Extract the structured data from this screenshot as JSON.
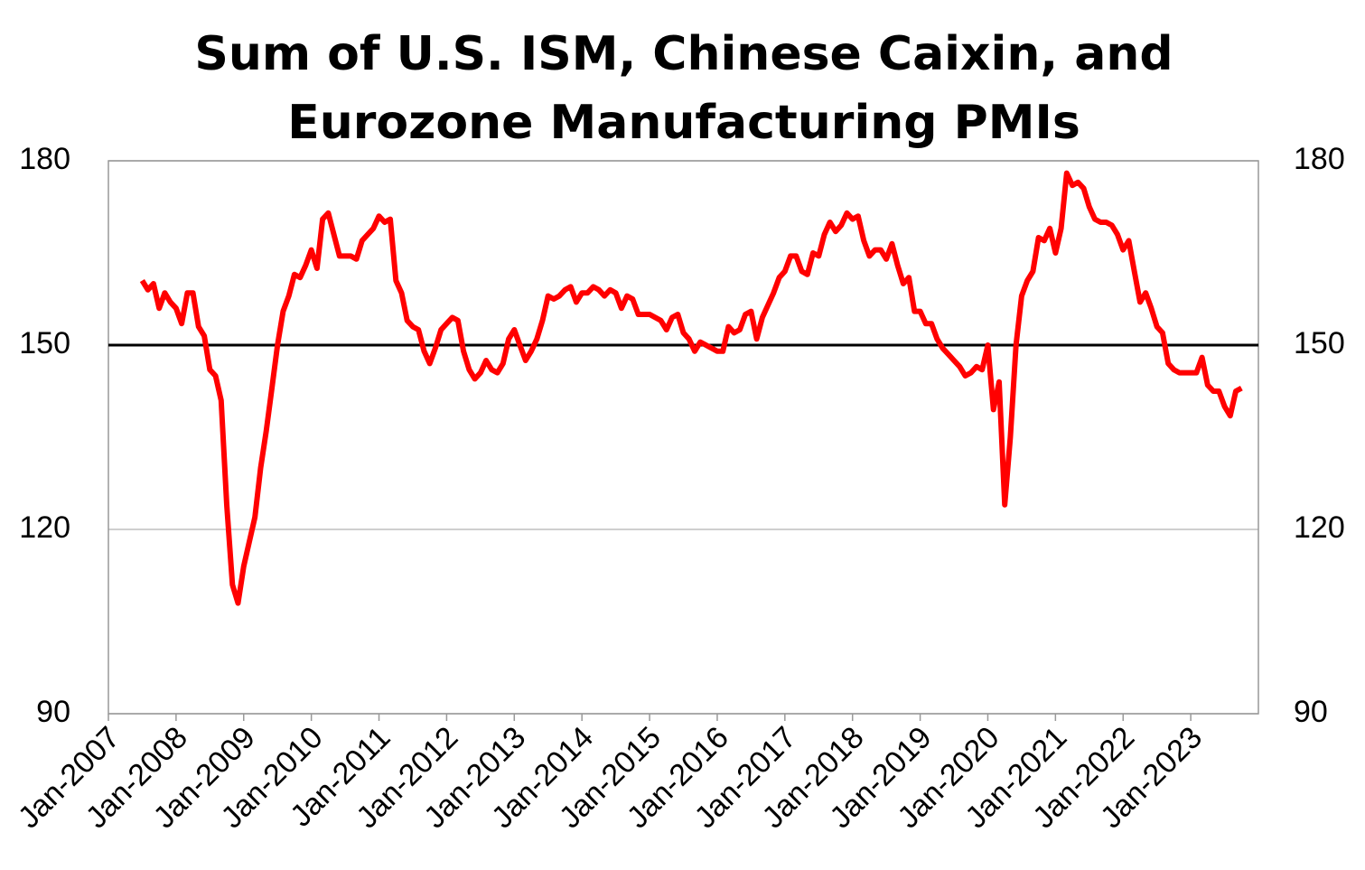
{
  "chart_data": {
    "type": "line",
    "title": "Sum of U.S. ISM, Chinese Caixin, and Eurozone Manufacturing PMIs",
    "x": [
      "2007-07",
      "2007-08",
      "2007-09",
      "2007-10",
      "2007-11",
      "2007-12",
      "2008-01",
      "2008-02",
      "2008-03",
      "2008-04",
      "2008-05",
      "2008-06",
      "2008-07",
      "2008-08",
      "2008-09",
      "2008-10",
      "2008-11",
      "2008-12",
      "2009-01",
      "2009-02",
      "2009-03",
      "2009-04",
      "2009-05",
      "2009-06",
      "2009-07",
      "2009-08",
      "2009-09",
      "2009-10",
      "2009-11",
      "2009-12",
      "2010-01",
      "2010-02",
      "2010-03",
      "2010-04",
      "2010-05",
      "2010-06",
      "2010-07",
      "2010-08",
      "2010-09",
      "2010-10",
      "2010-11",
      "2010-12",
      "2011-01",
      "2011-02",
      "2011-03",
      "2011-04",
      "2011-05",
      "2011-06",
      "2011-07",
      "2011-08",
      "2011-09",
      "2011-10",
      "2011-11",
      "2011-12",
      "2012-01",
      "2012-02",
      "2012-03",
      "2012-04",
      "2012-05",
      "2012-06",
      "2012-07",
      "2012-08",
      "2012-09",
      "2012-10",
      "2012-11",
      "2012-12",
      "2013-01",
      "2013-02",
      "2013-03",
      "2013-04",
      "2013-05",
      "2013-06",
      "2013-07",
      "2013-08",
      "2013-09",
      "2013-10",
      "2013-11",
      "2013-12",
      "2014-01",
      "2014-02",
      "2014-03",
      "2014-04",
      "2014-05",
      "2014-06",
      "2014-07",
      "2014-08",
      "2014-09",
      "2014-10",
      "2014-11",
      "2014-12",
      "2015-01",
      "2015-02",
      "2015-03",
      "2015-04",
      "2015-05",
      "2015-06",
      "2015-07",
      "2015-08",
      "2015-09",
      "2015-10",
      "2015-11",
      "2015-12",
      "2016-01",
      "2016-02",
      "2016-03",
      "2016-04",
      "2016-05",
      "2016-06",
      "2016-07",
      "2016-08",
      "2016-09",
      "2016-10",
      "2016-11",
      "2016-12",
      "2017-01",
      "2017-02",
      "2017-03",
      "2017-04",
      "2017-05",
      "2017-06",
      "2017-07",
      "2017-08",
      "2017-09",
      "2017-10",
      "2017-11",
      "2017-12",
      "2018-01",
      "2018-02",
      "2018-03",
      "2018-04",
      "2018-05",
      "2018-06",
      "2018-07",
      "2018-08",
      "2018-09",
      "2018-10",
      "2018-11",
      "2018-12",
      "2019-01",
      "2019-02",
      "2019-03",
      "2019-04",
      "2019-05",
      "2019-06",
      "2019-07",
      "2019-08",
      "2019-09",
      "2019-10",
      "2019-11",
      "2019-12",
      "2020-01",
      "2020-02",
      "2020-03",
      "2020-04",
      "2020-05",
      "2020-06",
      "2020-07",
      "2020-08",
      "2020-09",
      "2020-10",
      "2020-11",
      "2020-12",
      "2021-01",
      "2021-02",
      "2021-03",
      "2021-04",
      "2021-05",
      "2021-06",
      "2021-07",
      "2021-08",
      "2021-09",
      "2021-10",
      "2021-11",
      "2021-12",
      "2022-01",
      "2022-02",
      "2022-03",
      "2022-04",
      "2022-05",
      "2022-06",
      "2022-07",
      "2022-08",
      "2022-09",
      "2022-10",
      "2022-11",
      "2022-12",
      "2023-01",
      "2023-02",
      "2023-03",
      "2023-04",
      "2023-05",
      "2023-06",
      "2023-07",
      "2023-08",
      "2023-09",
      "2023-10"
    ],
    "series": [
      {
        "color": "#ff0000",
        "values": [
          160.5,
          159,
          160,
          156,
          158.5,
          157,
          156,
          153.5,
          158.5,
          158.5,
          153,
          151.5,
          146,
          145,
          141,
          124,
          111,
          108,
          114,
          118,
          122,
          130,
          136,
          143,
          150,
          155.5,
          158,
          161.5,
          161,
          163,
          165.5,
          162.5,
          170.5,
          171.5,
          168,
          164.5,
          164.5,
          164.5,
          164,
          167,
          168,
          169,
          171,
          170,
          170.5,
          160.5,
          158.5,
          154,
          153,
          152.5,
          149,
          147,
          149.5,
          152.5,
          153.5,
          154.5,
          154,
          149,
          146,
          144.5,
          145.5,
          147.5,
          146,
          145.5,
          147,
          151,
          152.5,
          150,
          147.5,
          149,
          151,
          154,
          158,
          157.5,
          158,
          159,
          159.5,
          157,
          158.5,
          158.5,
          159.5,
          159,
          158,
          159,
          158.5,
          156,
          158,
          157.5,
          155,
          155,
          155,
          154.5,
          154,
          152.5,
          154.5,
          155,
          152,
          151,
          149,
          150.5,
          150,
          149.5,
          149,
          149,
          153,
          152,
          152.5,
          155,
          155.5,
          151,
          154.5,
          156.5,
          158.5,
          161,
          162,
          164.5,
          164.5,
          162,
          161.5,
          165,
          164.5,
          168,
          170,
          168.5,
          169.5,
          171.5,
          170.5,
          171,
          167,
          164.5,
          165.5,
          165.5,
          164,
          166.5,
          163,
          160,
          161,
          155.5,
          155.5,
          153.5,
          153.5,
          151,
          149.5,
          148.5,
          147.5,
          146.5,
          145,
          145.5,
          146.5,
          146,
          150,
          139.5,
          144,
          124,
          135,
          150,
          158,
          160.5,
          162,
          167.5,
          167,
          169,
          165,
          169,
          178,
          176,
          176.5,
          175.5,
          172.5,
          170.5,
          170,
          170,
          169.5,
          168,
          165.5,
          167,
          162,
          157,
          158.5,
          156,
          153,
          152,
          147,
          146,
          145.5,
          145.5,
          145.5,
          145.5,
          148,
          143.5,
          142.5,
          142.5,
          140,
          138.5,
          142.5,
          143
        ]
      }
    ],
    "xlim": [
      "2007-01",
      "2024-01"
    ],
    "xticks": [
      {
        "value": "2007-01",
        "label": "Jan-2007"
      },
      {
        "value": "2008-01",
        "label": "Jan-2008"
      },
      {
        "value": "2009-01",
        "label": "Jan-2009"
      },
      {
        "value": "2010-01",
        "label": "Jan-2010"
      },
      {
        "value": "2011-01",
        "label": "Jan-2011"
      },
      {
        "value": "2012-01",
        "label": "Jan-2012"
      },
      {
        "value": "2013-01",
        "label": "Jan-2013"
      },
      {
        "value": "2014-01",
        "label": "Jan-2014"
      },
      {
        "value": "2015-01",
        "label": "Jan-2015"
      },
      {
        "value": "2016-01",
        "label": "Jan-2016"
      },
      {
        "value": "2017-01",
        "label": "Jan-2017"
      },
      {
        "value": "2018-01",
        "label": "Jan-2018"
      },
      {
        "value": "2019-01",
        "label": "Jan-2019"
      },
      {
        "value": "2020-01",
        "label": "Jan-2020"
      },
      {
        "value": "2021-01",
        "label": "Jan-2021"
      },
      {
        "value": "2022-01",
        "label": "Jan-2022"
      },
      {
        "value": "2023-01",
        "label": "Jan-2023"
      }
    ],
    "ylim": [
      90,
      180
    ],
    "yticks": [
      90,
      120,
      150,
      180
    ],
    "y2lim": [
      90,
      180
    ],
    "y2ticks": [
      90,
      120,
      150,
      180
    ],
    "reference_line": 150,
    "reference_color": "#000000",
    "grid": true
  }
}
